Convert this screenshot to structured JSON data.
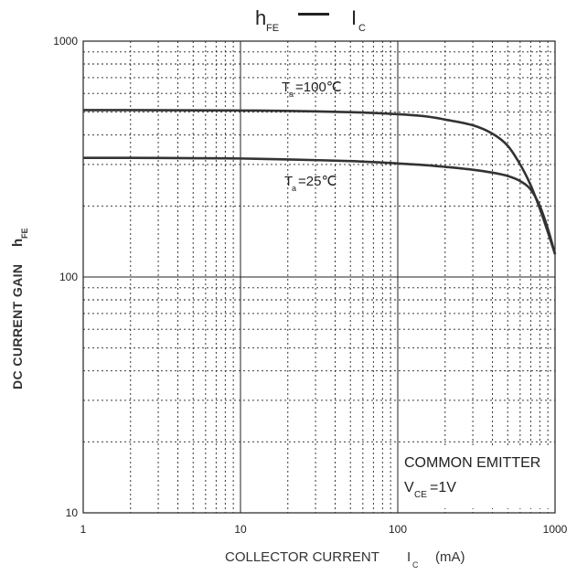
{
  "chart_data": {
    "type": "line",
    "title": {
      "hfe_main": "h",
      "hfe_sub": "FE",
      "ic_main": "I",
      "ic_sub": "C"
    },
    "xlabel": {
      "text": "COLLECTOR CURRENT",
      "symbol_main": "I",
      "symbol_sub": "C",
      "unit": "(mA)"
    },
    "ylabel": {
      "text": "DC CURRENT GAIN",
      "symbol_main": "h",
      "symbol_sub": "FE"
    },
    "x_scale": "log",
    "y_scale": "log",
    "xlim": [
      1,
      1000
    ],
    "ylim": [
      10,
      1000
    ],
    "x_ticks": [
      {
        "value": 1,
        "label": "1"
      },
      {
        "value": 10,
        "label": "10"
      },
      {
        "value": 100,
        "label": "100"
      },
      {
        "value": 1000,
        "label": "1000"
      }
    ],
    "y_ticks": [
      {
        "value": 10,
        "label": "10"
      },
      {
        "value": 100,
        "label": "100"
      },
      {
        "value": 1000,
        "label": "1000"
      }
    ],
    "grid": true,
    "series": [
      {
        "name_main": "T",
        "name_sub": "a",
        "name_rest": "=100℃",
        "x": [
          1,
          2,
          5,
          10,
          20,
          50,
          100,
          150,
          200,
          300,
          400,
          500,
          600,
          700,
          800,
          900,
          1000
        ],
        "y": [
          510,
          510,
          509,
          508,
          506,
          500,
          490,
          480,
          465,
          440,
          405,
          360,
          300,
          245,
          195,
          155,
          125
        ]
      },
      {
        "name_main": "T",
        "name_sub": "a",
        "name_rest": "=25℃",
        "x": [
          1,
          2,
          5,
          10,
          20,
          50,
          100,
          150,
          200,
          300,
          400,
          500,
          600,
          700,
          800,
          900,
          1000
        ],
        "y": [
          320,
          320,
          319,
          318,
          315,
          310,
          303,
          298,
          293,
          285,
          277,
          268,
          255,
          235,
          200,
          160,
          125
        ]
      }
    ],
    "annotation": {
      "line1": "COMMON EMITTER",
      "line2_main": "V",
      "line2_sub": "CE",
      "line2_rest": "=1V"
    },
    "line_color": "#333333",
    "grid_color": "#222222"
  }
}
